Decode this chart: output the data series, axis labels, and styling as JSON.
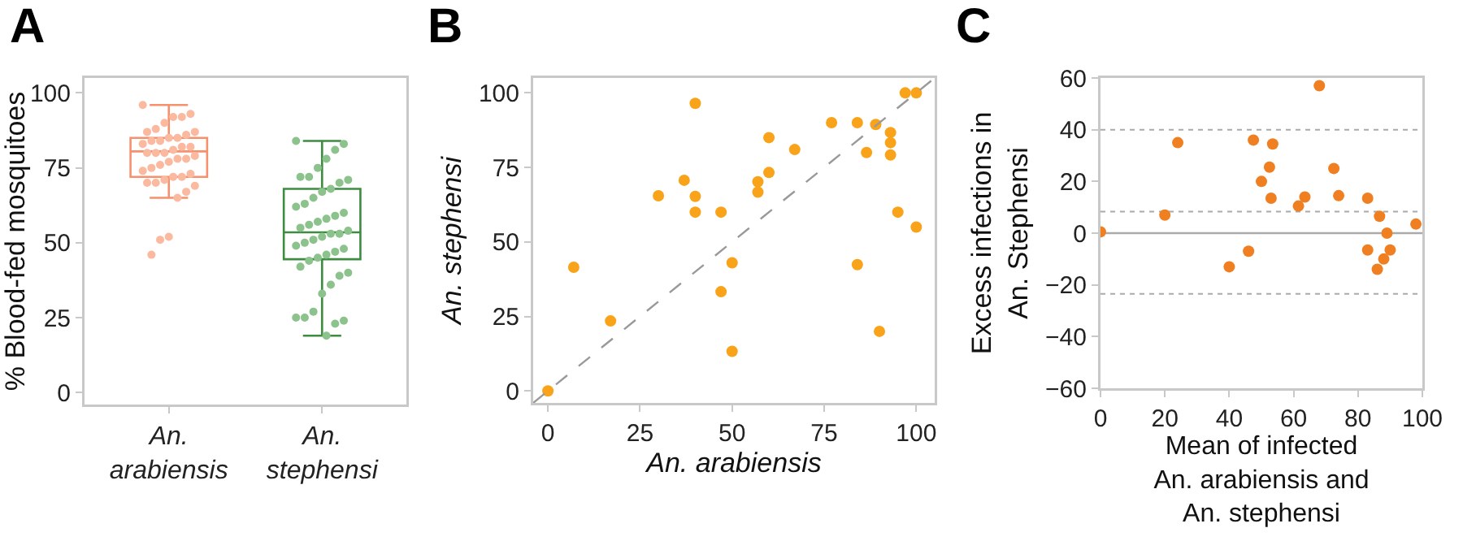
{
  "chart_data": [
    {
      "type": "box",
      "title": "A",
      "ylabel": "% Blood-fed mosquitoes",
      "categories": [
        "An. arabiensis",
        "An. stephensi"
      ],
      "boxes": [
        {
          "low": 65,
          "q1": 72,
          "median": 80.5,
          "q3": 85,
          "high": 96
        },
        {
          "low": 19,
          "q1": 44.5,
          "median": 53.5,
          "q3": 68,
          "high": 84
        }
      ],
      "colors": [
        "#f7906d",
        "#3d8c40"
      ],
      "series": [
        {
          "type": "scatter",
          "color": "#fbb9a0",
          "x": [
            "An. arabiensis",
            "An. arabiensis",
            "An. arabiensis",
            "An. arabiensis",
            "An. arabiensis",
            "An. arabiensis",
            "An. arabiensis",
            "An. arabiensis",
            "An. arabiensis",
            "An. arabiensis",
            "An. arabiensis",
            "An. arabiensis",
            "An. arabiensis",
            "An. arabiensis",
            "An. arabiensis",
            "An. arabiensis",
            "An. arabiensis",
            "An. arabiensis",
            "An. arabiensis",
            "An. arabiensis",
            "An. arabiensis",
            "An. arabiensis",
            "An. arabiensis",
            "An. arabiensis",
            "An. arabiensis",
            "An. arabiensis",
            "An. arabiensis",
            "An. arabiensis",
            "An. arabiensis",
            "An. arabiensis",
            "An. arabiensis",
            "An. arabiensis",
            "An. arabiensis",
            "An. arabiensis",
            "An. arabiensis",
            "An. arabiensis",
            "An. arabiensis",
            "An. arabiensis",
            "An. arabiensis"
          ],
          "values": [
            96,
            93,
            92,
            92,
            90,
            88,
            87,
            87,
            86,
            85,
            85,
            84,
            84,
            83,
            82,
            82,
            81,
            80,
            80,
            80,
            79,
            78,
            78,
            77,
            76,
            75,
            74,
            73,
            72,
            72,
            71,
            70,
            70,
            69,
            67,
            65,
            52,
            51,
            46
          ]
        },
        {
          "type": "scatter",
          "color": "#8cc28c",
          "x": [
            "An. stephensi",
            "An. stephensi",
            "An. stephensi",
            "An. stephensi",
            "An. stephensi",
            "An. stephensi",
            "An. stephensi",
            "An. stephensi",
            "An. stephensi",
            "An. stephensi",
            "An. stephensi",
            "An. stephensi",
            "An. stephensi",
            "An. stephensi",
            "An. stephensi",
            "An. stephensi",
            "An. stephensi",
            "An. stephensi",
            "An. stephensi",
            "An. stephensi",
            "An. stephensi",
            "An. stephensi",
            "An. stephensi",
            "An. stephensi",
            "An. stephensi",
            "An. stephensi",
            "An. stephensi",
            "An. stephensi",
            "An. stephensi",
            "An. stephensi",
            "An. stephensi",
            "An. stephensi",
            "An. stephensi",
            "An. stephensi",
            "An. stephensi",
            "An. stephensi",
            "An. stephensi",
            "An. stephensi",
            "An. stephensi",
            "An. stephensi",
            "An. stephensi",
            "An. stephensi",
            "An. stephensi"
          ],
          "values": [
            84,
            83,
            81,
            78,
            75,
            72,
            72,
            71,
            70,
            68,
            67,
            65,
            63,
            62,
            60,
            59,
            58,
            57,
            56,
            55,
            54,
            53,
            53,
            52,
            51,
            50,
            49,
            48,
            47,
            46,
            45,
            44,
            42,
            40,
            39,
            36,
            33,
            27,
            25,
            25,
            24,
            23,
            19
          ]
        }
      ],
      "ylim": [
        -4,
        105
      ],
      "yticks": [
        0,
        25,
        50,
        75,
        100
      ],
      "grid": false,
      "marker": "circle"
    },
    {
      "type": "scatter",
      "title": "B",
      "xlabel": "An. arabiensis",
      "ylabel": "An. stephensi",
      "x": [
        0,
        7,
        17,
        30,
        37,
        40,
        40,
        40,
        47,
        47,
        50,
        50,
        57,
        57,
        60,
        60,
        67,
        77,
        84,
        84,
        86.5,
        89,
        90,
        93,
        93,
        93,
        95,
        97,
        100,
        100
      ],
      "series": [
        {
          "type": "scatter",
          "color": "#f9a31b",
          "values": [
            0,
            41.5,
            23.5,
            65.5,
            70.7,
            96.5,
            65.3,
            60,
            60,
            33.3,
            43,
            13.3,
            70.2,
            66.7,
            73.3,
            85,
            81,
            90,
            90,
            42.4,
            80,
            89.4,
            20,
            86.7,
            83.3,
            79.2,
            60,
            100,
            100,
            55
          ]
        },
        {
          "type": "line",
          "color": "#999999",
          "line_style": "dashed",
          "marker": "none",
          "x": [
            -4,
            105
          ],
          "values": [
            -4,
            105
          ]
        }
      ],
      "xlim": [
        -4,
        105
      ],
      "xticks": [
        0,
        25,
        50,
        75,
        100
      ],
      "ylim": [
        -4,
        105
      ],
      "yticks": [
        0,
        25,
        50,
        75,
        100
      ],
      "grid": false,
      "marker": "circle"
    },
    {
      "type": "scatter",
      "title": "C",
      "xlabel": "Mean of infected\nAn. arabiensis and\nAn. stephensi",
      "ylabel": "Excess infections in\nAn. Stephensi",
      "x": [
        0,
        20,
        24,
        40,
        46,
        47.5,
        50,
        52.5,
        53,
        53.5,
        61.5,
        63.5,
        68,
        72.5,
        74,
        83,
        83,
        86,
        86.7,
        88,
        89,
        90,
        98
      ],
      "series": [
        {
          "type": "scatter",
          "color": "#f07f22",
          "values": [
            0.5,
            7,
            35,
            -13,
            -7,
            36,
            20,
            25.5,
            13.5,
            34.5,
            10.5,
            14,
            57,
            25,
            14.5,
            13.5,
            -6.5,
            -14,
            6.5,
            -10,
            0,
            -6.5,
            3.5
          ]
        }
      ],
      "ref_lines": [
        {
          "axis": "y",
          "value": 40,
          "color": "#aaaaaa",
          "line_style": "dotted"
        },
        {
          "axis": "y",
          "value": 8.3,
          "color": "#aaaaaa",
          "line_style": "dotted"
        },
        {
          "axis": "y",
          "value": 0,
          "color": "#aaaaaa",
          "line_style": "solid"
        },
        {
          "axis": "y",
          "value": -23.5,
          "color": "#aaaaaa",
          "line_style": "dotted"
        }
      ],
      "xlim": [
        0,
        100
      ],
      "xticks": [
        0,
        20,
        40,
        60,
        80,
        100
      ],
      "ylim": [
        -60,
        60
      ],
      "yticks": [
        {
          "value": -60,
          "label": "−60"
        },
        {
          "value": -40,
          "label": "−40"
        },
        {
          "value": -20,
          "label": "−20"
        },
        0,
        20,
        40,
        60
      ],
      "grid": false,
      "marker": "circle"
    }
  ]
}
